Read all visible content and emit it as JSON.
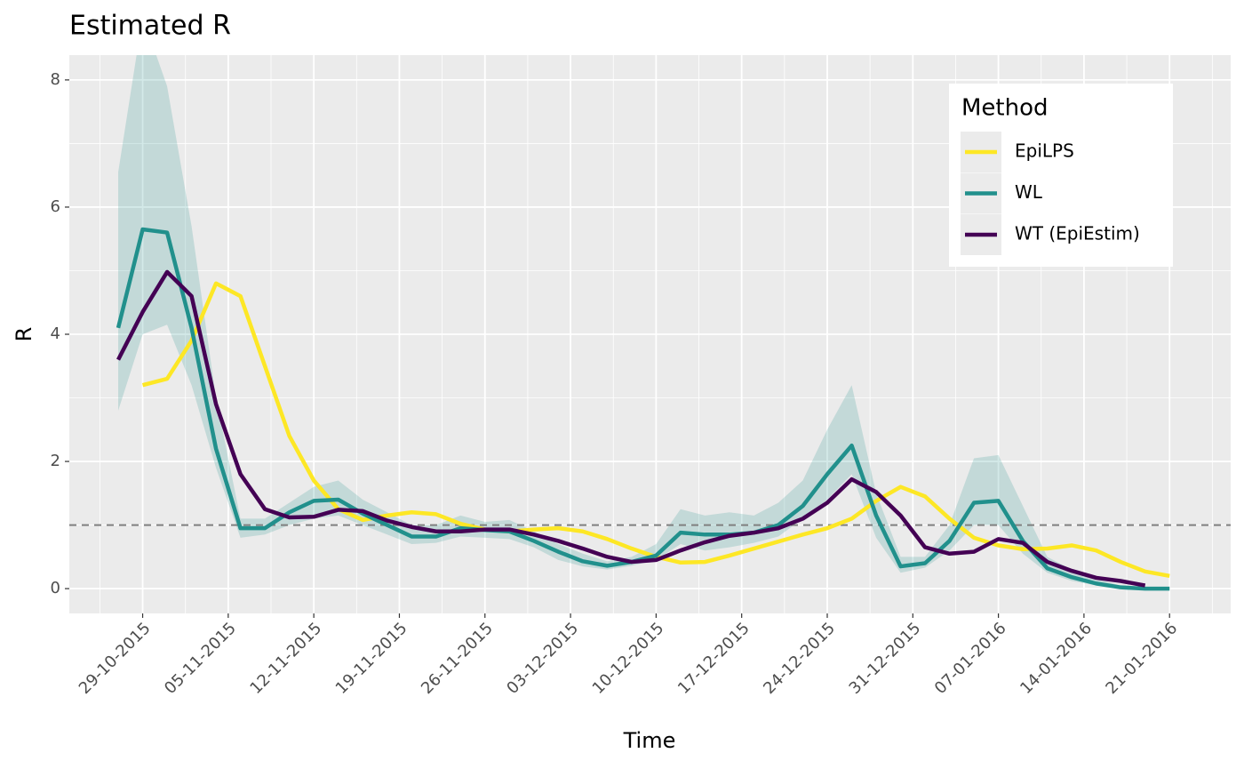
{
  "chart_data": {
    "type": "line",
    "title": "Estimated R",
    "x_label": "Time",
    "y_label": "R",
    "x": [
      "27-10-2015",
      "29-10-2015",
      "31-10-2015",
      "02-11-2015",
      "04-11-2015",
      "06-11-2015",
      "08-11-2015",
      "10-11-2015",
      "12-11-2015",
      "14-11-2015",
      "16-11-2015",
      "18-11-2015",
      "20-11-2015",
      "22-11-2015",
      "24-11-2015",
      "26-11-2015",
      "28-11-2015",
      "30-11-2015",
      "02-12-2015",
      "04-12-2015",
      "06-12-2015",
      "08-12-2015",
      "10-12-2015",
      "12-12-2015",
      "14-12-2015",
      "16-12-2015",
      "18-12-2015",
      "20-12-2015",
      "22-12-2015",
      "24-12-2015",
      "26-12-2015",
      "28-12-2015",
      "30-12-2015",
      "01-01-2016",
      "03-01-2016",
      "05-01-2016",
      "07-01-2016",
      "09-01-2016",
      "11-01-2016",
      "13-01-2016",
      "15-01-2016",
      "17-01-2016",
      "19-01-2016",
      "21-01-2016"
    ],
    "series": [
      {
        "name": "EpiLPS",
        "color": "#fde725",
        "values": [
          null,
          3.2,
          3.3,
          3.9,
          4.8,
          4.6,
          3.5,
          2.4,
          1.7,
          1.25,
          1.08,
          1.15,
          1.2,
          1.17,
          1.02,
          0.93,
          0.9,
          0.93,
          0.95,
          0.9,
          0.78,
          0.63,
          0.5,
          0.41,
          0.42,
          0.52,
          0.63,
          0.74,
          0.85,
          0.95,
          1.1,
          1.38,
          1.6,
          1.45,
          1.1,
          0.8,
          0.68,
          0.62,
          0.63,
          0.68,
          0.6,
          0.42,
          0.27,
          0.2
        ]
      },
      {
        "name": "WL",
        "color": "#21908c",
        "values": [
          4.1,
          5.65,
          5.6,
          4.1,
          2.2,
          0.95,
          0.95,
          1.2,
          1.38,
          1.4,
          1.18,
          1.0,
          0.82,
          0.82,
          0.95,
          0.92,
          0.9,
          0.75,
          0.58,
          0.43,
          0.36,
          0.42,
          0.52,
          0.88,
          0.85,
          0.85,
          0.88,
          1.0,
          1.3,
          1.8,
          2.25,
          1.15,
          0.35,
          0.4,
          0.75,
          1.35,
          1.38,
          0.75,
          0.32,
          0.18,
          0.08,
          0.02,
          0,
          0
        ]
      },
      {
        "name": "WT (EpiEstim)",
        "color": "#440154",
        "values": [
          3.6,
          4.35,
          4.98,
          4.6,
          2.9,
          1.8,
          1.25,
          1.12,
          1.13,
          1.24,
          1.22,
          1.07,
          0.97,
          0.9,
          0.9,
          0.93,
          0.93,
          0.85,
          0.75,
          0.63,
          0.5,
          0.42,
          0.45,
          0.6,
          0.73,
          0.83,
          0.88,
          0.95,
          1.1,
          1.35,
          1.72,
          1.52,
          1.15,
          0.65,
          0.55,
          0.58,
          0.78,
          0.72,
          0.42,
          0.28,
          0.17,
          0.12,
          0.05,
          null
        ]
      }
    ],
    "band": {
      "color": "#21908c",
      "lower": [
        2.8,
        4.0,
        4.15,
        3.2,
        1.9,
        0.8,
        0.85,
        1.0,
        1.1,
        1.15,
        1.0,
        0.85,
        0.7,
        0.72,
        0.82,
        0.8,
        0.78,
        0.65,
        0.45,
        0.35,
        0.3,
        0.36,
        0.45,
        0.7,
        0.6,
        0.65,
        0.72,
        0.82,
        1.1,
        1.4,
        1.8,
        0.8,
        0.25,
        0.33,
        0.6,
        1.0,
        1.0,
        0.55,
        0.25,
        0.12,
        0.05,
        0,
        0,
        0
      ],
      "upper": [
        6.55,
        9.0,
        7.9,
        5.7,
        3.0,
        1.1,
        1.1,
        1.35,
        1.6,
        1.7,
        1.4,
        1.2,
        1.0,
        1.0,
        1.15,
        1.05,
        1.08,
        0.9,
        0.7,
        0.55,
        0.43,
        0.5,
        0.7,
        1.25,
        1.15,
        1.2,
        1.15,
        1.35,
        1.7,
        2.5,
        3.2,
        1.5,
        0.5,
        0.5,
        1.0,
        2.05,
        2.1,
        1.3,
        0.5,
        0.3,
        0.15,
        0.05,
        0.02,
        0.01
      ]
    },
    "hline": 1,
    "xlim": [
      "23-10-2015",
      "26-01-2016"
    ],
    "xticks": [
      "29-10-2015",
      "05-11-2015",
      "12-11-2015",
      "19-11-2015",
      "26-11-2015",
      "03-12-2015",
      "10-12-2015",
      "17-12-2015",
      "24-12-2015",
      "31-12-2015",
      "07-01-2016",
      "14-01-2016",
      "21-01-2016"
    ],
    "ylim": [
      -0.39,
      8.39
    ],
    "yticks": [
      0,
      2,
      4,
      6,
      8
    ],
    "grid": true,
    "legend_title": "Method",
    "legend_position": "top-right"
  }
}
